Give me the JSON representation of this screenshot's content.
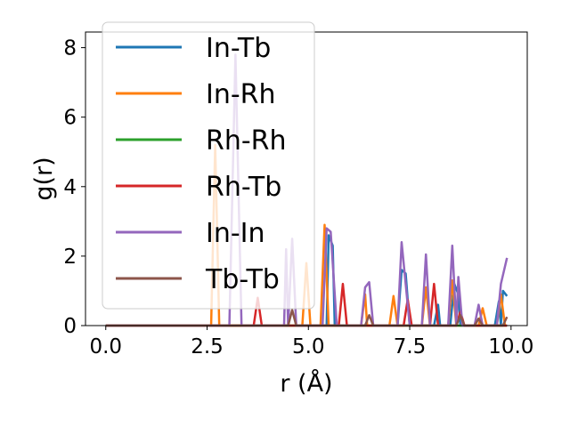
{
  "chart_data": {
    "type": "line",
    "title": "",
    "xlabel": "r (Å)",
    "ylabel": "g(r)",
    "xlim": [
      -0.5,
      10.4
    ],
    "ylim": [
      0,
      8.45
    ],
    "xticks": [
      0.0,
      2.5,
      5.0,
      7.5,
      10.0
    ],
    "xtick_labels": [
      "0.0",
      "2.5",
      "5.0",
      "7.5",
      "10.0"
    ],
    "yticks": [
      0,
      2,
      4,
      6,
      8
    ],
    "ytick_labels": [
      "0",
      "2",
      "4",
      "6",
      "8"
    ],
    "grid": false,
    "legend_position": "upper-left",
    "series": [
      {
        "name": "In-Tb",
        "color": "#1f77b4",
        "points": [
          [
            0,
            0
          ],
          [
            5.45,
            0
          ],
          [
            5.5,
            2.6
          ],
          [
            5.6,
            2.3
          ],
          [
            5.65,
            0
          ],
          [
            7.2,
            0
          ],
          [
            7.3,
            1.6
          ],
          [
            7.4,
            1.5
          ],
          [
            7.5,
            0
          ],
          [
            8.1,
            0
          ],
          [
            8.2,
            0.6
          ],
          [
            8.25,
            0
          ],
          [
            8.5,
            0
          ],
          [
            8.6,
            1.2
          ],
          [
            8.7,
            0.9
          ],
          [
            8.75,
            0
          ],
          [
            9.6,
            0
          ],
          [
            9.7,
            0.7
          ],
          [
            9.75,
            0
          ],
          [
            9.8,
            1.0
          ],
          [
            9.9,
            0.85
          ]
        ]
      },
      {
        "name": "In-Rh",
        "color": "#ff7f0e",
        "points": [
          [
            0,
            0
          ],
          [
            2.6,
            0
          ],
          [
            2.7,
            5.2
          ],
          [
            2.8,
            0
          ],
          [
            4.85,
            0
          ],
          [
            4.95,
            1.8
          ],
          [
            5.05,
            0
          ],
          [
            5.3,
            0
          ],
          [
            5.4,
            2.9
          ],
          [
            5.5,
            0
          ],
          [
            6.3,
            0
          ],
          [
            6.4,
            0.9
          ],
          [
            6.45,
            0
          ],
          [
            7.0,
            0
          ],
          [
            7.1,
            0.85
          ],
          [
            7.2,
            0
          ],
          [
            7.8,
            0
          ],
          [
            7.9,
            1.1
          ],
          [
            8.0,
            0
          ],
          [
            8.45,
            0
          ],
          [
            8.55,
            1.3
          ],
          [
            8.65,
            0
          ],
          [
            9.2,
            0
          ],
          [
            9.3,
            0.5
          ],
          [
            9.4,
            0
          ],
          [
            9.65,
            0
          ],
          [
            9.75,
            0.9
          ],
          [
            9.85,
            0
          ]
        ]
      },
      {
        "name": "Rh-Rh",
        "color": "#2ca02c",
        "points": [
          [
            0,
            0
          ],
          [
            9.9,
            0
          ]
        ]
      },
      {
        "name": "Rh-Tb",
        "color": "#d62728",
        "points": [
          [
            0,
            0
          ],
          [
            3.65,
            0
          ],
          [
            3.75,
            0.8
          ],
          [
            3.85,
            0
          ],
          [
            5.75,
            0
          ],
          [
            5.85,
            1.2
          ],
          [
            5.95,
            0
          ],
          [
            7.35,
            0
          ],
          [
            7.45,
            0.75
          ],
          [
            7.55,
            0
          ],
          [
            8.0,
            0
          ],
          [
            8.1,
            1.2
          ],
          [
            8.2,
            0
          ],
          [
            8.65,
            0
          ],
          [
            8.75,
            0.4
          ],
          [
            8.85,
            0
          ],
          [
            9.9,
            0
          ]
        ]
      },
      {
        "name": "In-In",
        "color": "#9467bd",
        "points": [
          [
            0,
            0
          ],
          [
            3.05,
            0
          ],
          [
            3.2,
            7.8
          ],
          [
            3.35,
            0
          ],
          [
            4.4,
            0
          ],
          [
            4.45,
            2.2
          ],
          [
            4.5,
            0
          ],
          [
            4.6,
            2.5
          ],
          [
            4.7,
            0
          ],
          [
            5.35,
            0
          ],
          [
            5.45,
            2.8
          ],
          [
            5.55,
            2.7
          ],
          [
            5.7,
            0
          ],
          [
            6.3,
            0
          ],
          [
            6.4,
            1.1
          ],
          [
            6.5,
            1.25
          ],
          [
            6.6,
            0
          ],
          [
            7.2,
            0
          ],
          [
            7.3,
            2.4
          ],
          [
            7.4,
            1.2
          ],
          [
            7.5,
            0
          ],
          [
            7.8,
            0
          ],
          [
            7.9,
            2.05
          ],
          [
            8.0,
            0
          ],
          [
            8.45,
            0
          ],
          [
            8.55,
            2.3
          ],
          [
            8.65,
            0
          ],
          [
            8.7,
            1.4
          ],
          [
            8.8,
            0
          ],
          [
            9.1,
            0
          ],
          [
            9.2,
            0.6
          ],
          [
            9.3,
            0
          ],
          [
            9.65,
            0
          ],
          [
            9.75,
            1.2
          ],
          [
            9.9,
            1.95
          ]
        ]
      },
      {
        "name": "Tb-Tb",
        "color": "#8c564b",
        "points": [
          [
            0,
            0
          ],
          [
            4.5,
            0
          ],
          [
            4.6,
            0.45
          ],
          [
            4.7,
            0
          ],
          [
            6.4,
            0
          ],
          [
            6.5,
            0.3
          ],
          [
            6.6,
            0
          ],
          [
            8.65,
            0
          ],
          [
            8.75,
            0.3
          ],
          [
            8.85,
            0
          ],
          [
            9.1,
            0
          ],
          [
            9.2,
            0.2
          ],
          [
            9.3,
            0
          ],
          [
            9.8,
            0
          ],
          [
            9.9,
            0.25
          ]
        ]
      }
    ]
  }
}
